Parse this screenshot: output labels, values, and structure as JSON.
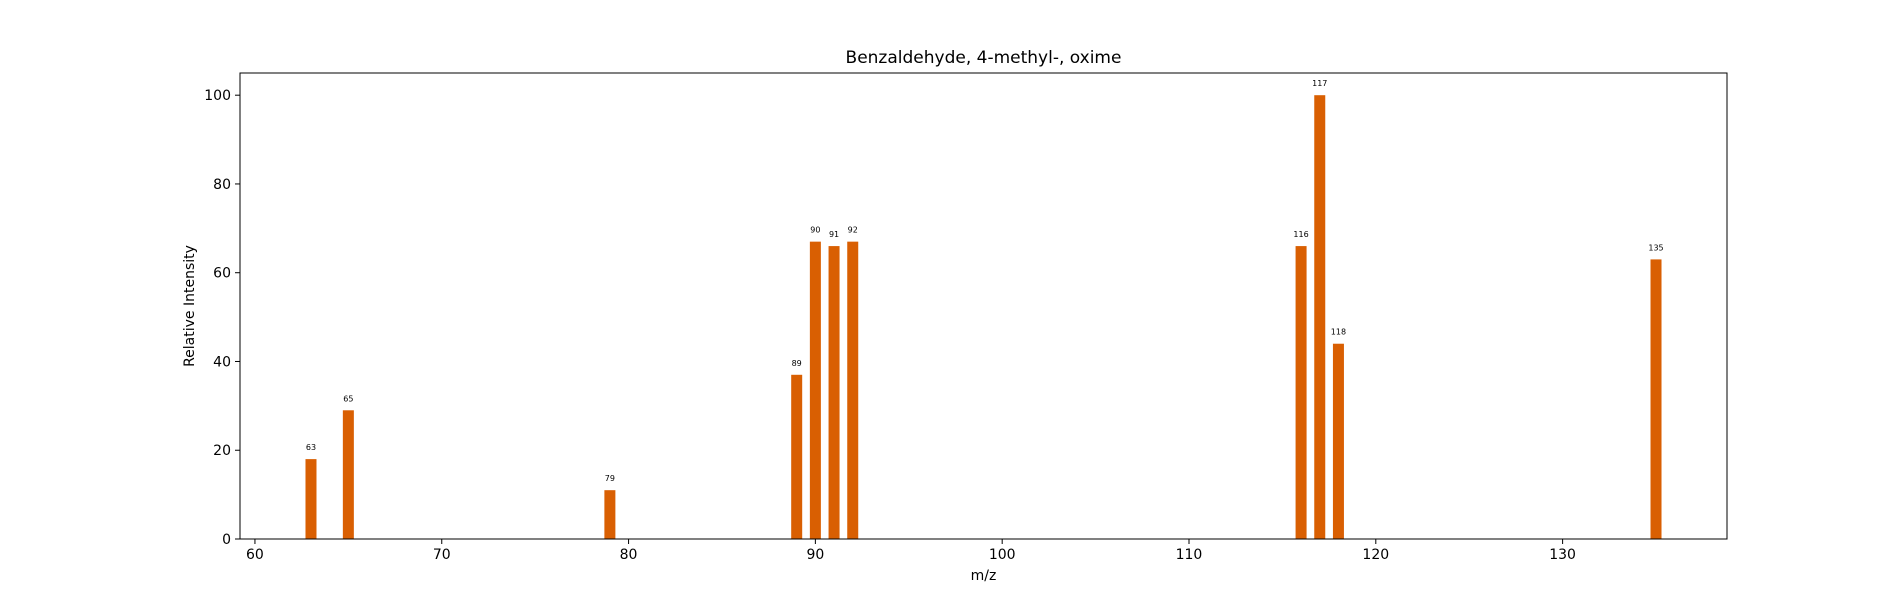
{
  "chart_data": {
    "type": "bar",
    "title": "Benzaldehyde, 4-methyl-, oxime",
    "xlabel": "m/z",
    "ylabel": "Relative Intensity",
    "xlim": [
      59.2,
      138.8
    ],
    "ylim": [
      0,
      105
    ],
    "xticks": [
      60,
      70,
      80,
      90,
      100,
      110,
      120,
      130
    ],
    "yticks": [
      0,
      20,
      40,
      60,
      80,
      100
    ],
    "grid": false,
    "bar_color": "#d95f02",
    "x": [
      63,
      65,
      79,
      89,
      90,
      91,
      92,
      116,
      117,
      118,
      135
    ],
    "values": [
      18,
      29,
      11,
      37,
      67,
      66,
      67,
      66,
      100,
      44,
      63
    ],
    "data_labels": [
      "63",
      "65",
      "79",
      "89",
      "90",
      "91",
      "92",
      "116",
      "117",
      "118",
      "135"
    ]
  }
}
